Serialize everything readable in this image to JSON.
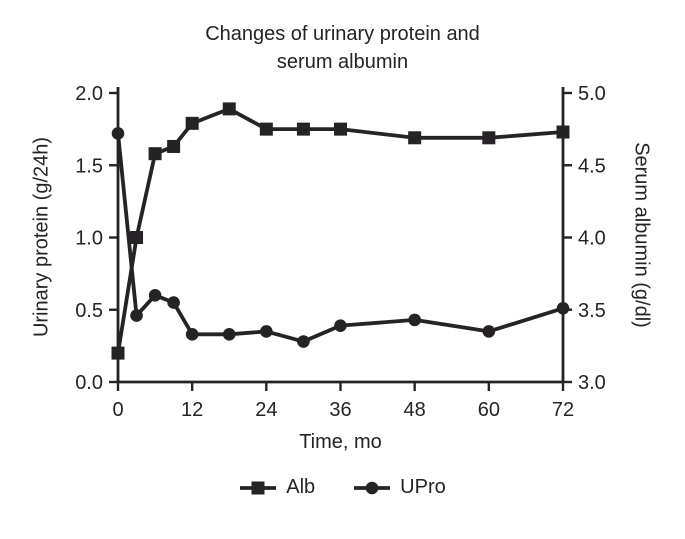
{
  "chart_data": {
    "type": "line",
    "title": "Changes of urinary protein and serum albumin",
    "title_lines": [
      "Changes of urinary protein and",
      "serum albumin"
    ],
    "xlabel": "Time, mo",
    "ylabel_left": "Urinary protein (g/24h)",
    "ylabel_right": "Serum albumin (g/dl)",
    "xlim": [
      0,
      72
    ],
    "ylim_left": [
      0.0,
      2.0
    ],
    "ylim_right": [
      3.0,
      5.0
    ],
    "x_ticks": [
      0,
      12,
      24,
      36,
      48,
      60,
      72
    ],
    "y_ticks_left": [
      "2.0",
      "1.5",
      "1.0",
      "0.5",
      "0.0"
    ],
    "y_ticks_right": [
      "5.0",
      "4.5",
      "4.0",
      "3.5",
      "3.0"
    ],
    "x": [
      0,
      3,
      6,
      9,
      12,
      18,
      24,
      30,
      36,
      48,
      60,
      72
    ],
    "series": [
      {
        "name": "Alb",
        "axis": "right",
        "marker": "square",
        "values": [
          3.2,
          4.0,
          4.58,
          4.63,
          4.79,
          4.89,
          4.75,
          4.75,
          4.75,
          4.69,
          4.69,
          4.73
        ]
      },
      {
        "name": "UPro",
        "axis": "left",
        "marker": "circle",
        "values": [
          1.72,
          0.46,
          0.6,
          0.55,
          0.33,
          0.33,
          0.35,
          0.28,
          0.39,
          0.43,
          0.35,
          0.51
        ]
      }
    ],
    "legend_position": "bottom",
    "grid": false,
    "line_color": "#262326",
    "background_color": "#ffffff"
  }
}
